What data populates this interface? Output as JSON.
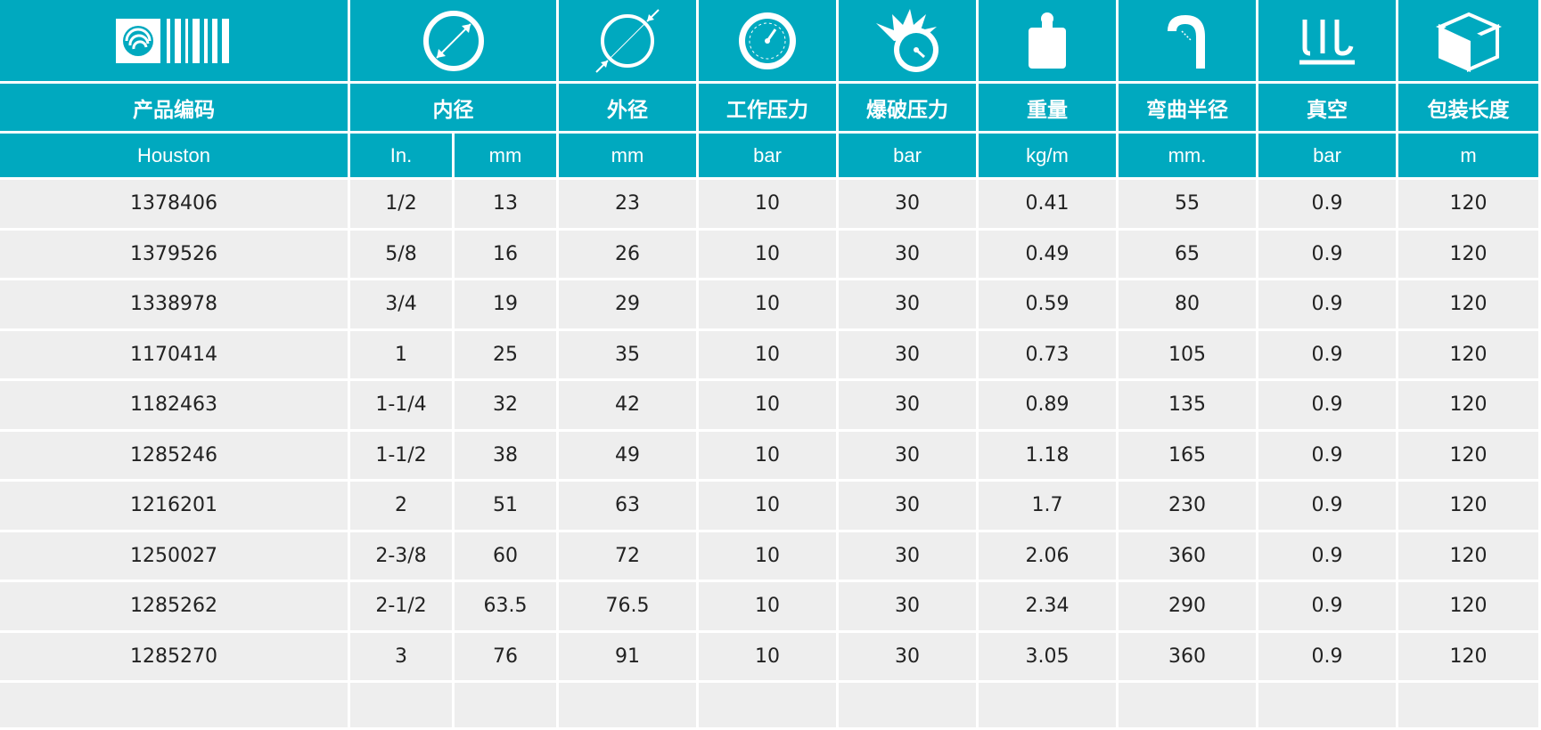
{
  "colors": {
    "header_bg": "#00a9bf",
    "row_bg": "#eeeeee",
    "header_text": "#ffffff",
    "body_text": "#222222"
  },
  "icons": [
    "logo-barcode-icon",
    "inner-diameter-icon",
    "outer-diameter-icon",
    "pressure-gauge-icon",
    "burst-pressure-icon",
    "weight-icon",
    "bend-radius-icon",
    "vacuum-icon",
    "package-box-icon"
  ],
  "headers": {
    "code": "产品编码",
    "inner": "内径",
    "outer": "外径",
    "working": "工作压力",
    "burst": "爆破压力",
    "weight": "重量",
    "bend": "弯曲半径",
    "vacuum": "真空",
    "length": "包装长度"
  },
  "units": {
    "code": "Houston",
    "inner_in": "In.",
    "inner_mm": "mm",
    "outer": "mm",
    "working": "bar",
    "burst": "bar",
    "weight": "kg/m",
    "bend": "mm.",
    "vacuum": "bar",
    "length": "m"
  },
  "rows": [
    {
      "code": "1378406",
      "in": "1/2",
      "mm": "13",
      "od": "23",
      "wp": "10",
      "bp": "30",
      "kg": "0.41",
      "br": "55",
      "vac": "0.9",
      "len": "120"
    },
    {
      "code": "1379526",
      "in": "5/8",
      "mm": "16",
      "od": "26",
      "wp": "10",
      "bp": "30",
      "kg": "0.49",
      "br": "65",
      "vac": "0.9",
      "len": "120"
    },
    {
      "code": "1338978",
      "in": "3/4",
      "mm": "19",
      "od": "29",
      "wp": "10",
      "bp": "30",
      "kg": "0.59",
      "br": "80",
      "vac": "0.9",
      "len": "120"
    },
    {
      "code": "1170414",
      "in": "1",
      "mm": "25",
      "od": "35",
      "wp": "10",
      "bp": "30",
      "kg": "0.73",
      "br": "105",
      "vac": "0.9",
      "len": "120"
    },
    {
      "code": "1182463",
      "in": "1-1/4",
      "mm": "32",
      "od": "42",
      "wp": "10",
      "bp": "30",
      "kg": "0.89",
      "br": "135",
      "vac": "0.9",
      "len": "120"
    },
    {
      "code": "1285246",
      "in": "1-1/2",
      "mm": "38",
      "od": "49",
      "wp": "10",
      "bp": "30",
      "kg": "1.18",
      "br": "165",
      "vac": "0.9",
      "len": "120"
    },
    {
      "code": "1216201",
      "in": "2",
      "mm": "51",
      "od": "63",
      "wp": "10",
      "bp": "30",
      "kg": "1.7",
      "br": "230",
      "vac": "0.9",
      "len": "120"
    },
    {
      "code": "1250027",
      "in": "2-3/8",
      "mm": "60",
      "od": "72",
      "wp": "10",
      "bp": "30",
      "kg": "2.06",
      "br": "360",
      "vac": "0.9",
      "len": "120"
    },
    {
      "code": "1285262",
      "in": "2-1/2",
      "mm": "63.5",
      "od": "76.5",
      "wp": "10",
      "bp": "30",
      "kg": "2.34",
      "br": "290",
      "vac": "0.9",
      "len": "120"
    },
    {
      "code": "1285270",
      "in": "3",
      "mm": "76",
      "od": "91",
      "wp": "10",
      "bp": "30",
      "kg": "3.05",
      "br": "360",
      "vac": "0.9",
      "len": "120"
    }
  ]
}
